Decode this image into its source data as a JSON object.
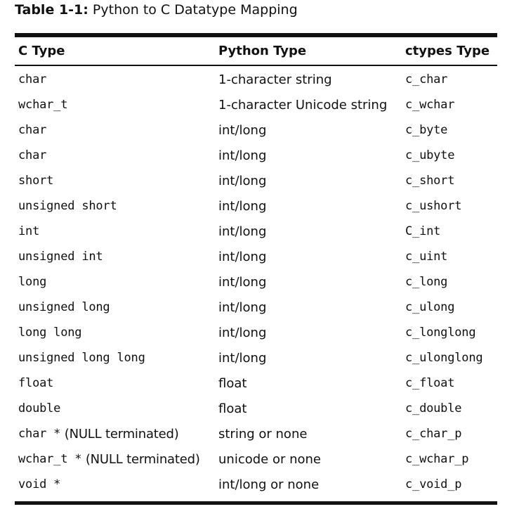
{
  "caption": {
    "label": "Table 1-1:",
    "title": "Python to C Datatype Mapping"
  },
  "table": {
    "headers": [
      "C Type",
      "Python Type",
      "ctypes Type"
    ],
    "rows": [
      {
        "c_type": "char",
        "c_type_note": "",
        "python_type": "1-character string",
        "ctypes_type": "c_char"
      },
      {
        "c_type": "wchar_t",
        "c_type_note": "",
        "python_type": "1-character Unicode string",
        "ctypes_type": "c_wchar"
      },
      {
        "c_type": "char",
        "c_type_note": "",
        "python_type": "int/long",
        "ctypes_type": "c_byte"
      },
      {
        "c_type": "char",
        "c_type_note": "",
        "python_type": "int/long",
        "ctypes_type": "c_ubyte"
      },
      {
        "c_type": "short",
        "c_type_note": "",
        "python_type": "int/long",
        "ctypes_type": "c_short"
      },
      {
        "c_type": "unsigned short",
        "c_type_note": "",
        "python_type": "int/long",
        "ctypes_type": "c_ushort"
      },
      {
        "c_type": "int",
        "c_type_note": "",
        "python_type": "int/long",
        "ctypes_type": "C_int"
      },
      {
        "c_type": "unsigned int",
        "c_type_note": "",
        "python_type": "int/long",
        "ctypes_type": "c_uint"
      },
      {
        "c_type": "long",
        "c_type_note": "",
        "python_type": "int/long",
        "ctypes_type": "c_long"
      },
      {
        "c_type": "unsigned long",
        "c_type_note": "",
        "python_type": "int/long",
        "ctypes_type": "c_ulong"
      },
      {
        "c_type": "long long",
        "c_type_note": "",
        "python_type": "int/long",
        "ctypes_type": "c_longlong"
      },
      {
        "c_type": "unsigned long long",
        "c_type_note": "",
        "python_type": "int/long",
        "ctypes_type": "c_ulonglong"
      },
      {
        "c_type": "float",
        "c_type_note": "",
        "python_type": "float",
        "ctypes_type": "c_float"
      },
      {
        "c_type": "double",
        "c_type_note": "",
        "python_type": "float",
        "ctypes_type": "c_double"
      },
      {
        "c_type": "char *",
        "c_type_note": " (NULL terminated)",
        "python_type": "string or none",
        "ctypes_type": "c_char_p"
      },
      {
        "c_type": "wchar_t *",
        "c_type_note": " (NULL terminated)",
        "python_type": "unicode or none",
        "ctypes_type": "c_wchar_p"
      },
      {
        "c_type": "void *",
        "c_type_note": "",
        "python_type": "int/long or none",
        "ctypes_type": "c_void_p"
      }
    ]
  }
}
